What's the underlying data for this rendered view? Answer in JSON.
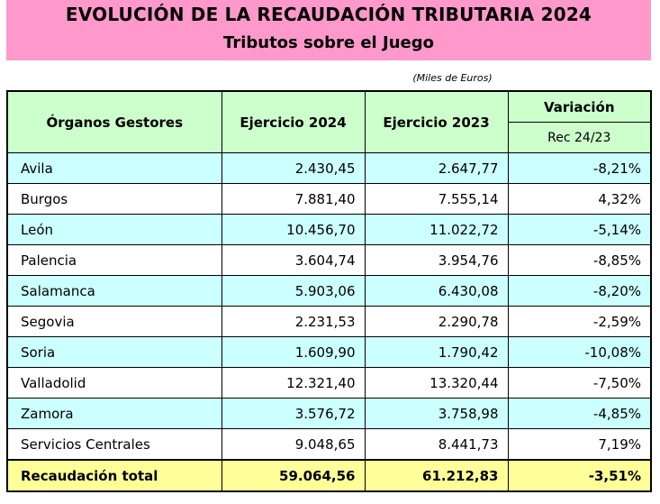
{
  "header": {
    "title": "EVOLUCIÓN DE LA RECAUDACIÓN TRIBUTARIA 2024",
    "subtitle": "Tributos sobre el Juego",
    "units": "(Miles de Euros)"
  },
  "table": {
    "columns": [
      "Órganos Gestores",
      "Ejercicio 2024",
      "Ejercicio 2023",
      "Variación"
    ],
    "variation_sub": "Rec 24/23",
    "rows": [
      {
        "name": "Avila",
        "y2024": "2.430,45",
        "y2023": "2.647,77",
        "var": "-8,21%"
      },
      {
        "name": "Burgos",
        "y2024": "7.881,40",
        "y2023": "7.555,14",
        "var": "4,32%"
      },
      {
        "name": "León",
        "y2024": "10.456,70",
        "y2023": "11.022,72",
        "var": "-5,14%"
      },
      {
        "name": "Palencia",
        "y2024": "3.604,74",
        "y2023": "3.954,76",
        "var": "-8,85%"
      },
      {
        "name": "Salamanca",
        "y2024": "5.903,06",
        "y2023": "6.430,08",
        "var": "-8,20%"
      },
      {
        "name": "Segovia",
        "y2024": "2.231,53",
        "y2023": "2.290,78",
        "var": "-2,59%"
      },
      {
        "name": "Soria",
        "y2024": "1.609,90",
        "y2023": "1.790,42",
        "var": "-10,08%"
      },
      {
        "name": "Valladolid",
        "y2024": "12.321,40",
        "y2023": "13.320,44",
        "var": "-7,50%"
      },
      {
        "name": "Zamora",
        "y2024": "3.576,72",
        "y2023": "3.758,98",
        "var": "-4,85%"
      },
      {
        "name": "Servicios Centrales",
        "y2024": "9.048,65",
        "y2023": "8.441,73",
        "var": "7,19%"
      }
    ],
    "total": {
      "name": "Recaudación total",
      "y2024": "59.064,56",
      "y2023": "61.212,83",
      "var": "-3,51%"
    }
  },
  "colors": {
    "banner": "#ff99cc",
    "header_bg": "#ccffcc",
    "odd_row": "#ccffff",
    "total_row": "#ffff99"
  }
}
